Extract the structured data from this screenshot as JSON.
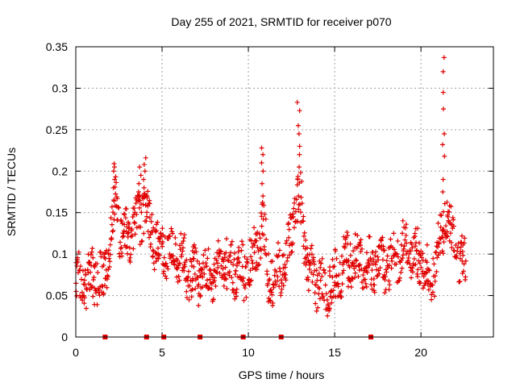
{
  "chart_data": {
    "type": "scatter",
    "title": "Day 255 of 2021, SRMTID for receiver p070",
    "xlabel": "GPS time / hours",
    "ylabel": "SRMTID / TECUs",
    "xlim": [
      0,
      24.2
    ],
    "ylim": [
      0,
      0.35
    ],
    "x_ticks": [
      0,
      5,
      10,
      15,
      20
    ],
    "x_tick_labels": [
      "0",
      "5",
      "10",
      "15",
      "20"
    ],
    "y_ticks": [
      0,
      0.05,
      0.1,
      0.15,
      0.2,
      0.25,
      0.3,
      0.35
    ],
    "y_tick_labels": [
      "0",
      "0.05",
      "0.1",
      "0.15",
      "0.2",
      "0.25",
      "0.3",
      "0.35"
    ],
    "grid": true,
    "marker": "plus",
    "series_color": "#e00000",
    "gap_markers_x": [
      1.7,
      4.1,
      5.1,
      7.2,
      9.7,
      11.9,
      17.1
    ],
    "profile": [
      [
        0.0,
        0.07
      ],
      [
        0.5,
        0.065
      ],
      [
        1.0,
        0.075
      ],
      [
        1.5,
        0.07
      ],
      [
        2.0,
        0.11
      ],
      [
        2.3,
        0.17
      ],
      [
        2.7,
        0.11
      ],
      [
        3.0,
        0.12
      ],
      [
        3.5,
        0.14
      ],
      [
        4.0,
        0.16
      ],
      [
        4.3,
        0.13
      ],
      [
        4.7,
        0.11
      ],
      [
        5.0,
        0.11
      ],
      [
        5.5,
        0.1
      ],
      [
        6.0,
        0.1
      ],
      [
        6.5,
        0.08
      ],
      [
        7.0,
        0.075
      ],
      [
        7.5,
        0.075
      ],
      [
        8.0,
        0.07
      ],
      [
        8.5,
        0.085
      ],
      [
        9.0,
        0.09
      ],
      [
        9.5,
        0.075
      ],
      [
        10.0,
        0.08
      ],
      [
        10.5,
        0.11
      ],
      [
        10.8,
        0.14
      ],
      [
        11.2,
        0.07
      ],
      [
        11.8,
        0.08
      ],
      [
        12.2,
        0.09
      ],
      [
        12.6,
        0.15
      ],
      [
        13.0,
        0.17
      ],
      [
        13.5,
        0.08
      ],
      [
        14.0,
        0.065
      ],
      [
        14.5,
        0.055
      ],
      [
        15.0,
        0.07
      ],
      [
        15.5,
        0.085
      ],
      [
        16.0,
        0.09
      ],
      [
        16.5,
        0.09
      ],
      [
        17.0,
        0.085
      ],
      [
        17.5,
        0.09
      ],
      [
        18.0,
        0.09
      ],
      [
        18.5,
        0.095
      ],
      [
        19.0,
        0.11
      ],
      [
        19.5,
        0.1
      ],
      [
        20.0,
        0.09
      ],
      [
        20.5,
        0.07
      ],
      [
        21.0,
        0.1
      ],
      [
        21.4,
        0.15
      ],
      [
        21.8,
        0.12
      ],
      [
        22.2,
        0.1
      ],
      [
        22.6,
        0.08
      ]
    ],
    "peaks": [
      {
        "x": 21.3,
        "values": [
          0.337,
          0.32,
          0.295,
          0.275,
          0.245,
          0.232,
          0.218,
          0.19,
          0.175
        ]
      },
      {
        "x": 12.9,
        "values": [
          0.283,
          0.273,
          0.255,
          0.245,
          0.23,
          0.22,
          0.205,
          0.19
        ]
      },
      {
        "x": 10.8,
        "values": [
          0.228,
          0.22,
          0.21,
          0.2,
          0.185,
          0.17,
          0.16
        ]
      },
      {
        "x": 4.0,
        "values": [
          0.216,
          0.208,
          0.2,
          0.19,
          0.18,
          0.17
        ]
      },
      {
        "x": 2.2,
        "values": [
          0.209,
          0.205,
          0.2,
          0.19,
          0.18
        ]
      },
      {
        "x": 3.7,
        "values": [
          0.205,
          0.195,
          0.185,
          0.175,
          0.165
        ]
      }
    ]
  }
}
